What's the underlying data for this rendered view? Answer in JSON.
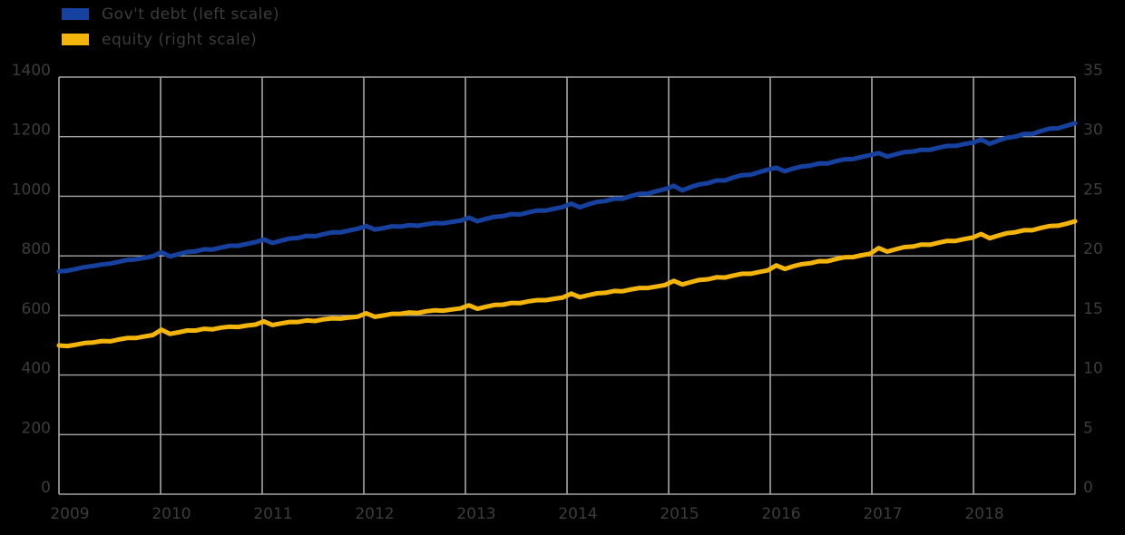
{
  "legend": {
    "items": [
      {
        "label": "Gov't debt (left scale)",
        "color": "#17419f"
      },
      {
        "label": "equity (right scale)",
        "color": "#f3b40c"
      }
    ]
  },
  "chart_data": {
    "type": "line",
    "x_unit": "month",
    "x_start": "2009-01",
    "x_end": "2018-12",
    "x_tick_labels": [
      "2009",
      "2010",
      "2011",
      "2012",
      "2013",
      "2014",
      "2015",
      "2016",
      "2017",
      "2018"
    ],
    "axes": {
      "left": {
        "ylim": [
          0,
          1400
        ],
        "ticks": [
          0,
          200,
          400,
          600,
          800,
          1000,
          1200,
          1400
        ]
      },
      "right": {
        "ylim": [
          0,
          35
        ],
        "ticks": [
          0,
          5,
          10,
          15,
          20,
          25,
          30,
          35
        ]
      }
    },
    "grid": true,
    "legend_position": "top-left",
    "styles": {
      "background": "#000000",
      "grid_color": "#a6a6a6",
      "text_color": "#3c3c3c",
      "line_width": 5
    },
    "series": [
      {
        "name": "Gov't debt (left scale)",
        "axis": "left",
        "color": "#17419f",
        "values": [
          748,
          750,
          756,
          762,
          766,
          771,
          774,
          780,
          786,
          788,
          793,
          799,
          812,
          798,
          806,
          813,
          815,
          822,
          821,
          828,
          834,
          834,
          840,
          846,
          855,
          843,
          851,
          858,
          860,
          867,
          866,
          873,
          879,
          879,
          885,
          891,
          900,
          888,
          893,
          899,
          898,
          903,
          901,
          906,
          910,
          909,
          914,
          918,
          928,
          916,
          924,
          931,
          933,
          940,
          939,
          946,
          952,
          952,
          958,
          964,
          975,
          963,
          973,
          981,
          984,
          992,
          992,
          1001,
          1008,
          1009,
          1017,
          1024,
          1035,
          1020,
          1031,
          1040,
          1044,
          1053,
          1053,
          1063,
          1071,
          1072,
          1081,
          1089,
          1096,
          1084,
          1093,
          1100,
          1103,
          1110,
          1110,
          1118,
          1124,
          1125,
          1132,
          1138,
          1145,
          1133,
          1141,
          1148,
          1150,
          1156,
          1156,
          1163,
          1169,
          1169,
          1175,
          1180,
          1190,
          1176,
          1187,
          1196,
          1200,
          1209,
          1209,
          1219,
          1227,
          1228,
          1237,
          1245
        ]
      },
      {
        "name": "equity (right scale)",
        "axis": "right",
        "color": "#f3b40c",
        "values": [
          12.48,
          12.43,
          12.55,
          12.68,
          12.73,
          12.85,
          12.83,
          12.98,
          13.1,
          13.1,
          13.23,
          13.35,
          13.8,
          13.45,
          13.58,
          13.73,
          13.73,
          13.88,
          13.83,
          13.98,
          14.05,
          14.03,
          14.15,
          14.23,
          14.5,
          14.2,
          14.33,
          14.45,
          14.45,
          14.58,
          14.53,
          14.68,
          14.75,
          14.73,
          14.83,
          14.9,
          15.18,
          14.88,
          15.0,
          15.13,
          15.13,
          15.25,
          15.2,
          15.35,
          15.43,
          15.4,
          15.5,
          15.58,
          15.85,
          15.55,
          15.73,
          15.88,
          15.9,
          16.05,
          16.03,
          16.18,
          16.28,
          16.28,
          16.4,
          16.5,
          16.83,
          16.53,
          16.7,
          16.85,
          16.9,
          17.05,
          17.03,
          17.18,
          17.3,
          17.3,
          17.43,
          17.55,
          17.9,
          17.6,
          17.8,
          17.98,
          18.03,
          18.2,
          18.18,
          18.35,
          18.5,
          18.5,
          18.65,
          18.78,
          19.2,
          18.9,
          19.13,
          19.3,
          19.38,
          19.55,
          19.55,
          19.73,
          19.88,
          19.9,
          20.05,
          20.18,
          20.65,
          20.35,
          20.55,
          20.73,
          20.78,
          20.95,
          20.93,
          21.1,
          21.25,
          21.25,
          21.4,
          21.53,
          21.83,
          21.48,
          21.7,
          21.9,
          21.98,
          22.15,
          22.15,
          22.35,
          22.5,
          22.53,
          22.7,
          22.9
        ]
      }
    ]
  }
}
